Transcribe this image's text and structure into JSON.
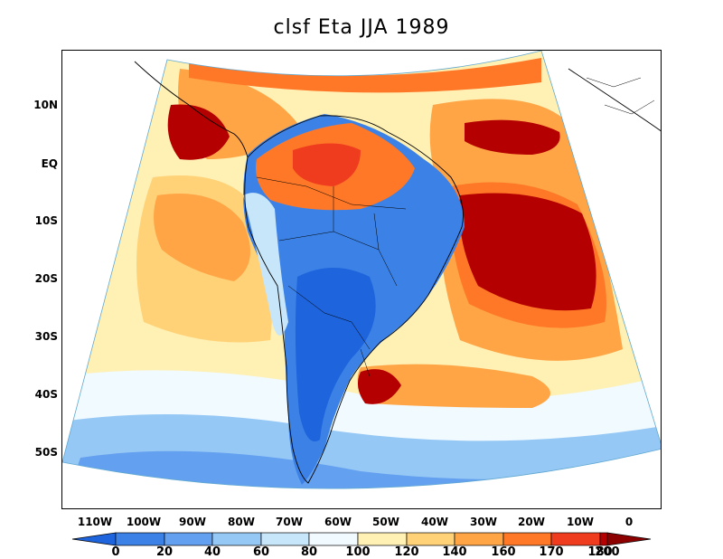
{
  "title": "clsf Eta JJA 1989",
  "lat_labels": [
    "10N",
    "EQ",
    "10S",
    "20S",
    "30S",
    "40S",
    "50S"
  ],
  "lon_labels": [
    "110W",
    "100W",
    "90W",
    "80W",
    "70W",
    "60W",
    "50W",
    "40W",
    "30W",
    "20W",
    "10W",
    "0"
  ],
  "colorbar": {
    "levels": [
      "0",
      "20",
      "40",
      "60",
      "80",
      "100",
      "120",
      "140",
      "160",
      "170",
      "180",
      "200"
    ],
    "colors": [
      "#1e64dc",
      "#3c82e6",
      "#64a0f0",
      "#96c8f5",
      "#c8e6fa",
      "#f0faff",
      "#fff0b4",
      "#ffd278",
      "#ffa546",
      "#ff7828",
      "#f03c1e",
      "#b40000",
      "#8c0000"
    ]
  },
  "field_regions": [
    {
      "name": "pacific-east-warm",
      "level": 8
    },
    {
      "name": "caribbean-hot",
      "level": 11
    },
    {
      "name": "atlantic-tropical-hot",
      "level": 11
    },
    {
      "name": "atlantic-south-warm",
      "level": 9
    },
    {
      "name": "amazon-warm",
      "level": 9
    },
    {
      "name": "continent-interior-low",
      "level": 1
    },
    {
      "name": "southern-ocean-low",
      "level": 3
    }
  ]
}
